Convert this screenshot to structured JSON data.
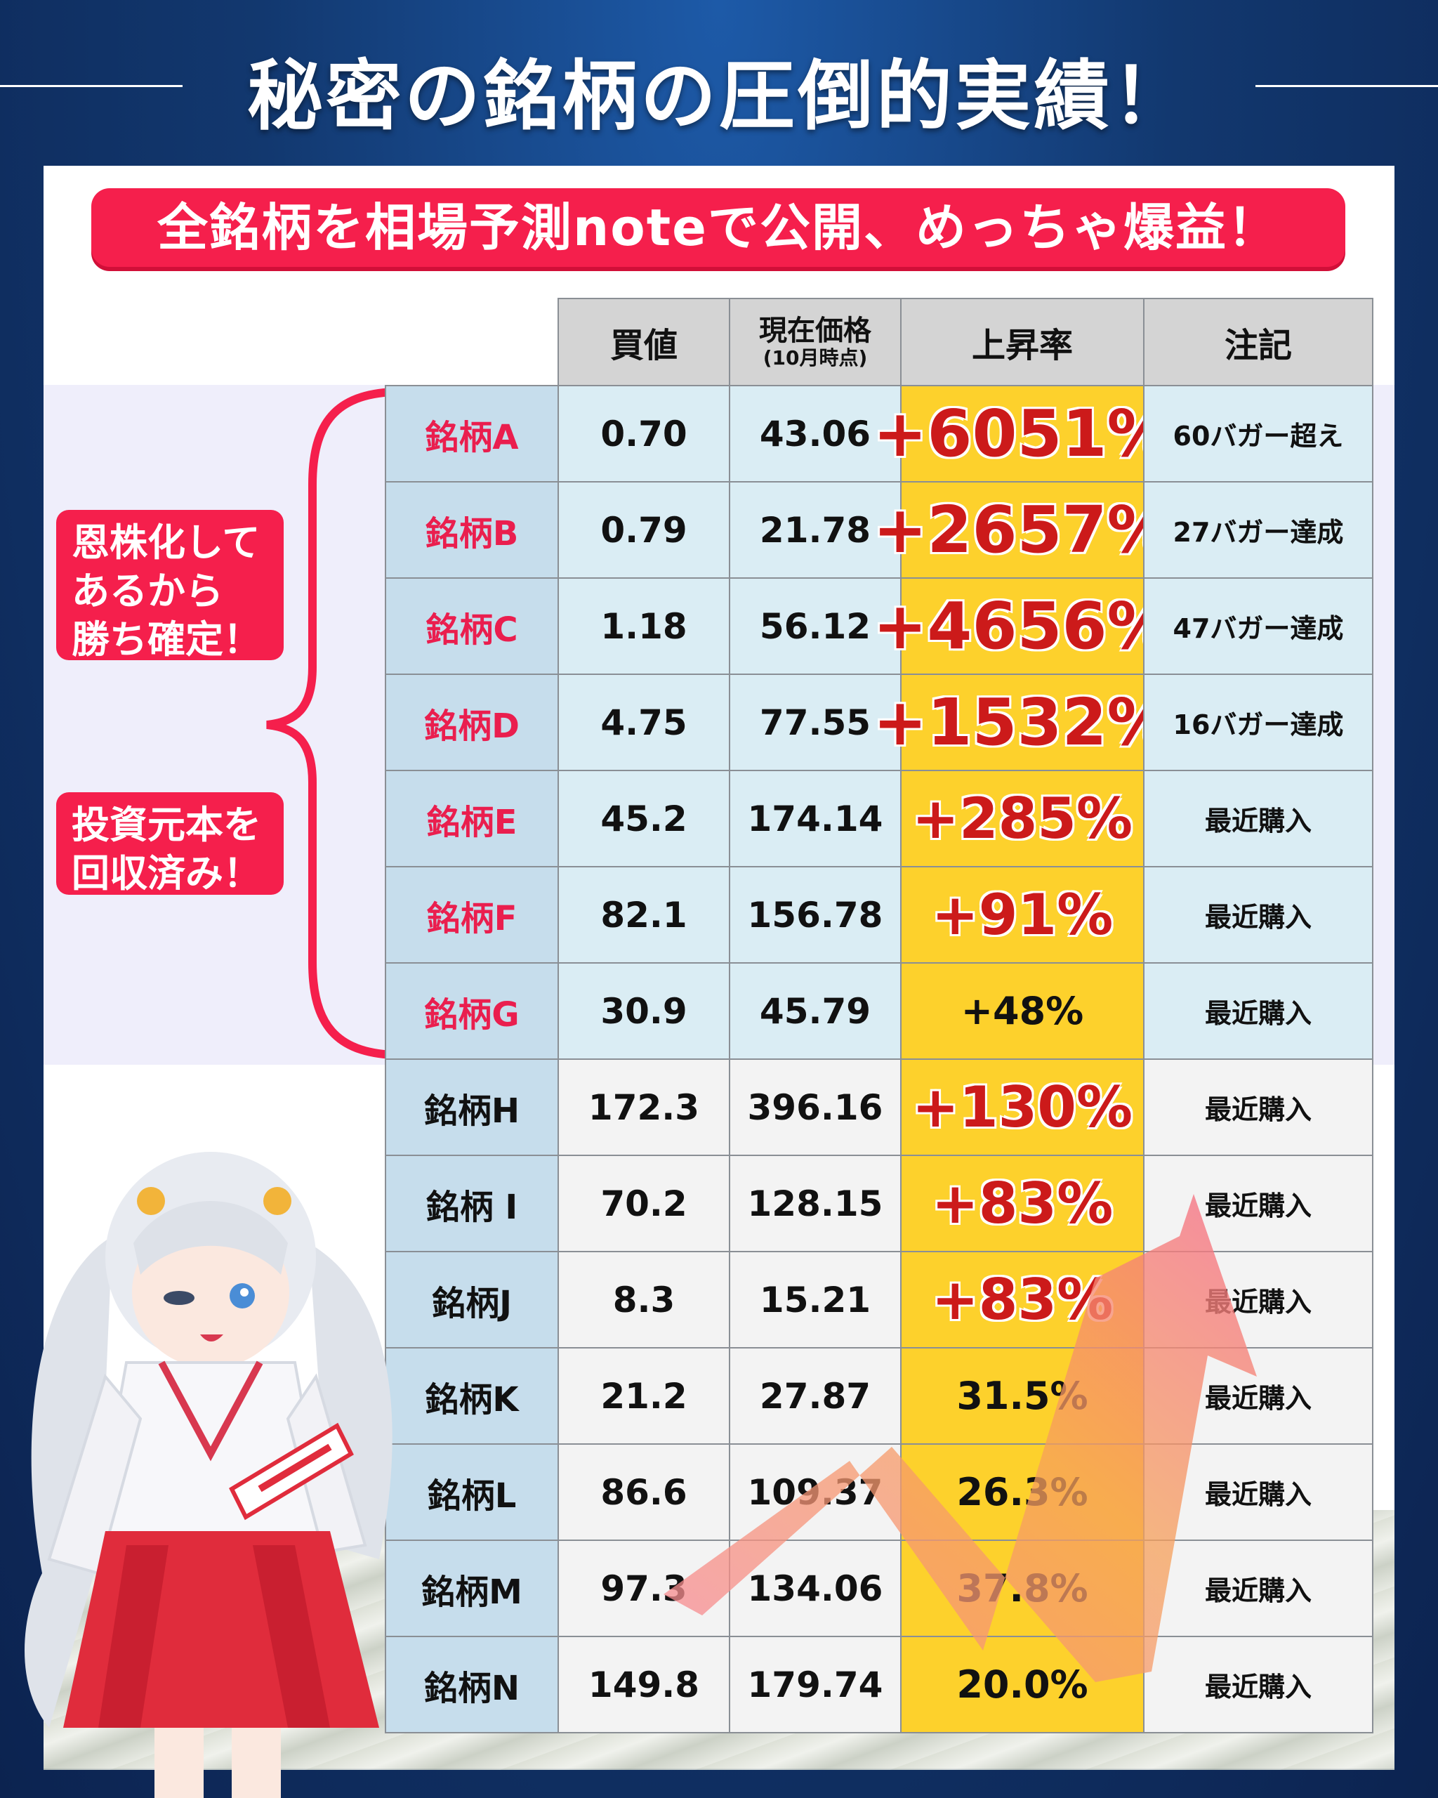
{
  "header": {
    "title": "秘密の銘柄の圧倒的実績！"
  },
  "banner": {
    "text": "全銘柄を相場予測noteで公開、めっちゃ爆益！"
  },
  "side_badges": {
    "badge1": [
      "恩株化して",
      "あるから",
      "勝ち確定！"
    ],
    "badge2": [
      "投資元本を",
      "回収済み！"
    ]
  },
  "table": {
    "headers": {
      "buy": "買値",
      "current_line1": "現在価格",
      "current_line2": "(10月時点)",
      "rate": "上昇率",
      "note": "注記"
    },
    "rows": [
      {
        "name": "銘柄A",
        "buy": "0.70",
        "current": "43.06",
        "rate": "+6051%",
        "note": "60バガー超え"
      },
      {
        "name": "銘柄B",
        "buy": "0.79",
        "current": "21.78",
        "rate": "+2657%",
        "note": "27バガー達成"
      },
      {
        "name": "銘柄C",
        "buy": "1.18",
        "current": "56.12",
        "rate": "+4656%",
        "note": "47バガー達成"
      },
      {
        "name": "銘柄D",
        "buy": "4.75",
        "current": "77.55",
        "rate": "+1532%",
        "note": "16バガー達成"
      },
      {
        "name": "銘柄E",
        "buy": "45.2",
        "current": "174.14",
        "rate": "+285%",
        "note": "最近購入"
      },
      {
        "name": "銘柄F",
        "buy": "82.1",
        "current": "156.78",
        "rate": "+91%",
        "note": "最近購入"
      },
      {
        "name": "銘柄G",
        "buy": "30.9",
        "current": "45.79",
        "rate": "+48%",
        "note": "最近購入"
      },
      {
        "name": "銘柄H",
        "buy": "172.3",
        "current": "396.16",
        "rate": "+130%",
        "note": "最近購入"
      },
      {
        "name": "銘柄 I",
        "buy": "70.2",
        "current": "128.15",
        "rate": "+83%",
        "note": "最近購入"
      },
      {
        "name": "銘柄J",
        "buy": "8.3",
        "current": "15.21",
        "rate": "+83%",
        "note": "最近購入"
      },
      {
        "name": "銘柄K",
        "buy": "21.2",
        "current": "27.87",
        "rate": "31.5%",
        "note": "最近購入"
      },
      {
        "name": "銘柄L",
        "buy": "86.6",
        "current": "109.37",
        "rate": "26.3%",
        "note": "最近購入"
      },
      {
        "name": "銘柄M",
        "buy": "97.3",
        "current": "134.06",
        "rate": "37.8%",
        "note": "最近購入"
      },
      {
        "name": "銘柄N",
        "buy": "149.8",
        "current": "179.74",
        "rate": "20.0%",
        "note": "最近購入"
      }
    ]
  },
  "colors": {
    "accent_red": "#f51f4c",
    "rate_yellow": "#fdd12c",
    "name_blue": "#c6ddec",
    "rate_text_red": "#cc1a1a"
  },
  "icons": {
    "character": "shrine-maiden-illustration",
    "arrow": "trend-up-arrow"
  }
}
